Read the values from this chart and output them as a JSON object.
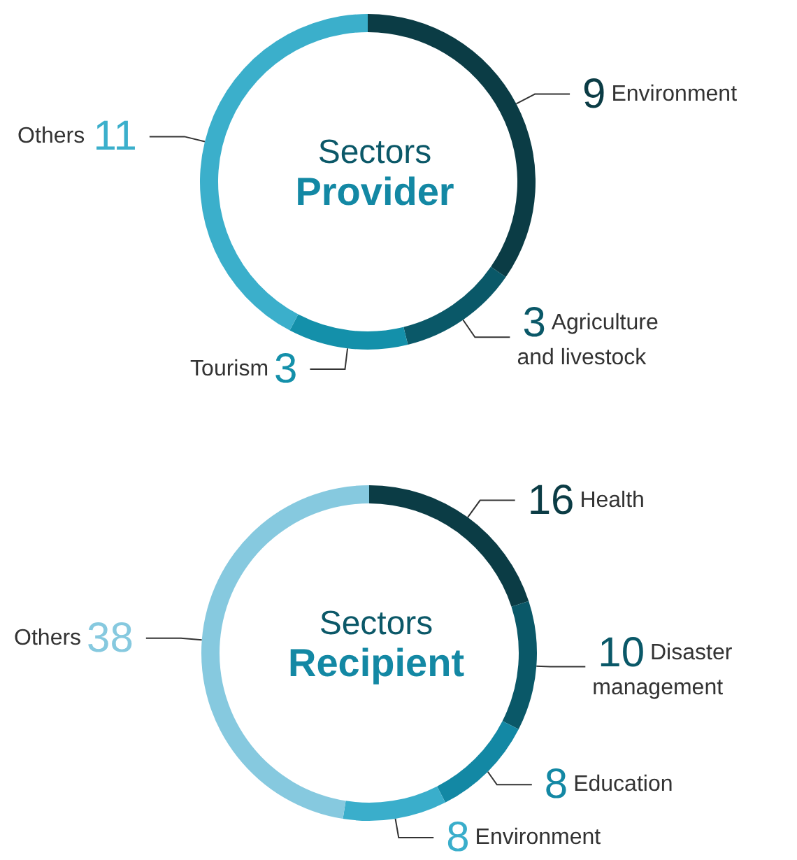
{
  "chart_data": [
    {
      "type": "donut",
      "title": "Sectors",
      "subtitle": "Provider",
      "categories": [
        "Environment",
        "Agriculture and livestock",
        "Tourism",
        "Others"
      ],
      "values": [
        9,
        3,
        3,
        11
      ],
      "colors": [
        "#0b3c45",
        "#0a5868",
        "#1490aa",
        "#3bafcb"
      ],
      "data_labels": true
    },
    {
      "type": "donut",
      "title": "Sectors",
      "subtitle": "Recipient",
      "categories": [
        "Health",
        "Disaster management",
        "Education",
        "Environment",
        "Others"
      ],
      "values": [
        16,
        10,
        8,
        8,
        38
      ],
      "colors": [
        "#0b3c45",
        "#0a5868",
        "#1388a4",
        "#3aaecb",
        "#86c9df"
      ],
      "data_labels": true
    }
  ]
}
